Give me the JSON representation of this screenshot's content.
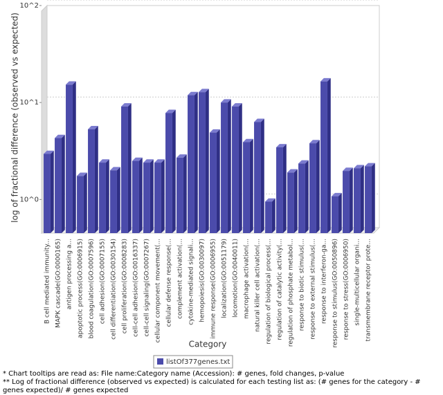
{
  "chart_data": {
    "type": "bar",
    "ylabel": "log of fractional difference (observed vs expected)",
    "xlabel": "Category",
    "log_scale": true,
    "grid": true,
    "ylim": [
      0.45,
      100
    ],
    "yticks": [
      {
        "value": 1,
        "label": "10^0"
      },
      {
        "value": 10,
        "label": "10^1"
      },
      {
        "value": 100,
        "label": "10^2"
      }
    ],
    "categories": [
      "B cell mediated immunity...",
      "MAPK cascade(GO:0000165)",
      "antigen processing a...",
      "apoptotic process(GO:0006915)",
      "blood coagulation(GO:0007596)",
      "cell adhesion(GO:0007155)",
      "cell differentiation(GO:0030154)",
      "cell proliferation(GO:0008283)",
      "cell-cell adhesion(GO:0016337)",
      "cell-cell signaling(GO:0007267)",
      "cellular component movement(...",
      "cellular defense response(...",
      "complement activation(...",
      "cytokine-mediated signali...",
      "hemopoiesis(GO:0030097)",
      "immune response(GO:0006955)",
      "localization(GO:0051179)",
      "locomotion(GO:0040011)",
      "macrophage activation(...",
      "natural killer cell activation(...",
      "regulation of biological process(...",
      "regulation of catalytic activity(...",
      "regulation of phosphate metabol...",
      "response to biotic stimulus(...",
      "response to external stimulus(...",
      "response to interferon-ga...",
      "response to stimulus(GO:0050896)",
      "response to stress(GO:0006950)",
      "single-multicellular organi...",
      "transmembrane receptor prote..."
    ],
    "series": [
      {
        "name": "listOf377genes.txt",
        "color": "#4b4bab",
        "values": [
          2.95,
          4.3,
          15.3,
          1.75,
          5.3,
          2.4,
          2.0,
          9.1,
          2.5,
          2.4,
          2.4,
          7.8,
          2.7,
          11.9,
          12.8,
          4.9,
          10,
          9.1,
          3.9,
          6.3,
          0.95,
          3.45,
          1.9,
          2.35,
          3.8,
          16.5,
          1.08,
          1.97,
          2.1,
          2.2
        ]
      }
    ],
    "footnotes": [
      "* Chart tooltips are read as: File name:Category name (Accession): # genes, fold changes, p-value",
      "** Log of fractional difference (observed vs expected) is calculated for each testing list as: (# genes for the category - # genes expected)/ # genes expected"
    ]
  }
}
